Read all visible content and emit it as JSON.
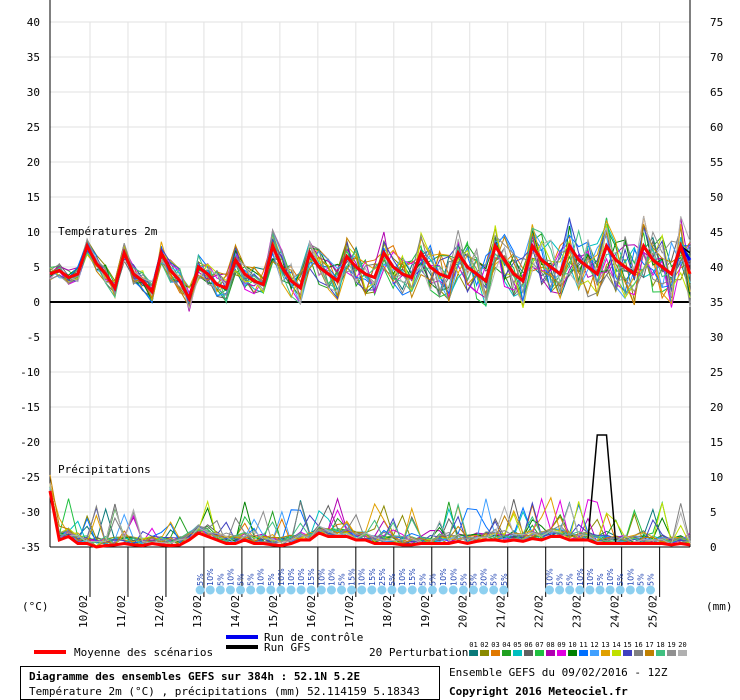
{
  "colors": {
    "mean": "#ff0000",
    "control": "#0000ee",
    "gfs": "#000000",
    "snow": "#8ed0f0"
  },
  "chart_data": {
    "type": "line",
    "left_axis": {
      "label": "(°C)",
      "range": [
        -35,
        40
      ],
      "ticks": [
        "40",
        "35",
        "30",
        "25",
        "20",
        "15",
        "10",
        "5",
        "0",
        "-5",
        "-10",
        "-15",
        "-20",
        "-25",
        "-30",
        "-35"
      ]
    },
    "right_axis": {
      "label": "(mm)",
      "range": [
        0,
        75
      ],
      "ticks": [
        "75",
        "70",
        "65",
        "60",
        "55",
        "50",
        "45",
        "40",
        "35",
        "30",
        "25",
        "20",
        "15",
        "10",
        "5",
        "0"
      ]
    },
    "x_labels": [
      "10/02",
      "11/02",
      "12/02",
      "13/02",
      "14/02",
      "15/02",
      "16/02",
      "17/02",
      "18/02",
      "19/02",
      "20/02",
      "21/02",
      "22/02",
      "23/02",
      "24/02",
      "25/02"
    ],
    "panels": [
      "Températures 2m",
      "Précipitations"
    ],
    "legend": {
      "mean": "Moyenne des scénarios",
      "control": "Run de contrôle",
      "gfs": "Run GFS",
      "perturbations": "20 Perturbations",
      "perturbation_ids": [
        "01",
        "02",
        "03",
        "04",
        "05",
        "06",
        "07",
        "08",
        "09",
        "10",
        "11",
        "12",
        "13",
        "14",
        "15",
        "16",
        "17",
        "18",
        "19",
        "20"
      ]
    },
    "perturbation_colors": [
      "#0a7a7a",
      "#8a8a00",
      "#e07800",
      "#20a020",
      "#00c0c0",
      "#606060",
      "#20c040",
      "#b000b0",
      "#e000e0",
      "#008000",
      "#0070ff",
      "#40a0ff",
      "#e0a000",
      "#c0e000",
      "#4040c0",
      "#808080",
      "#c08000",
      "#40c080",
      "#909090",
      "#b0b0b0"
    ],
    "snow_labels": [
      "5%",
      "10%",
      "5%",
      "10%",
      "5%",
      "5%",
      "10%",
      "5%",
      "10%",
      "10%",
      "10%",
      "15%",
      "10%",
      "10%",
      "5%",
      "15%",
      "10%",
      "15%",
      "25%",
      "5%",
      "10%",
      "15%",
      "5%",
      "5%",
      "10%",
      "10%",
      "5%",
      "5%",
      "20%",
      "5%",
      "5%",
      "10%",
      "5%",
      "5%",
      "10%",
      "10%",
      "5%",
      "10%",
      "5%",
      "10%",
      "5%",
      "5%"
    ],
    "series": [
      {
        "name": "Moyenne des scénarios",
        "temp": [
          4,
          4.5,
          3.5,
          4,
          8,
          5.5,
          4,
          2,
          7,
          4,
          3,
          1.5,
          7,
          4.5,
          3,
          0.5,
          5,
          4,
          2.5,
          2,
          6,
          4,
          3,
          2.5,
          8,
          5,
          3,
          2,
          7,
          5,
          4,
          3,
          6.5,
          5,
          4,
          3.5,
          7,
          5,
          4,
          3.5,
          7,
          5,
          4,
          3.5,
          7,
          5,
          4,
          3,
          8,
          6,
          4,
          3,
          8,
          6,
          5,
          4,
          8,
          6,
          5,
          4,
          8,
          6,
          5,
          4,
          8,
          6,
          5,
          4,
          8,
          4
        ]
      },
      {
        "name": "Run de contrôle",
        "temp": [
          4,
          4.5,
          3.5,
          4,
          8,
          5.5,
          4,
          2,
          7,
          4,
          3,
          1.5,
          7,
          4.5,
          3,
          0.5,
          5,
          4,
          2.5,
          2,
          6,
          4,
          3,
          2.5,
          8,
          5,
          3,
          2,
          7,
          5,
          4,
          3,
          6.5,
          5,
          4,
          3.5,
          7,
          5,
          4,
          3.5,
          7,
          5,
          4,
          3.5,
          7,
          5,
          4,
          3,
          8,
          6,
          4,
          3,
          8,
          6,
          5,
          4,
          8,
          6,
          5,
          4,
          8,
          6,
          5,
          4,
          8,
          6,
          5,
          4,
          8,
          6
        ]
      },
      {
        "name": "Run GFS",
        "temp": [
          4,
          4.5,
          3.5,
          4,
          8,
          5.5,
          4,
          2,
          7,
          4,
          3,
          1.5,
          7,
          4.5,
          3,
          0.5,
          5,
          4,
          2.5,
          2,
          6,
          4,
          3,
          2.5,
          8,
          5,
          3,
          2,
          7,
          5,
          4,
          3,
          6.5,
          5,
          4,
          3.5,
          7,
          5,
          4,
          3.5,
          7,
          5,
          4,
          3.5,
          7,
          5,
          4,
          3,
          8,
          6,
          4,
          3,
          8,
          6,
          5,
          4,
          8,
          6,
          5,
          4,
          8,
          6,
          5,
          4,
          8,
          6,
          5,
          4,
          8,
          7
        ]
      }
    ],
    "precip_mean": [
      8,
      1,
      1.5,
      0.5,
      0.5,
      0,
      0.2,
      0.3,
      0.5,
      0.3,
      0.2,
      0.5,
      0.3,
      0.2,
      0.3,
      1,
      2,
      1.5,
      1,
      0.5,
      0.5,
      1,
      0.5,
      0.5,
      0.3,
      0.2,
      0.5,
      1,
      1,
      2,
      1.5,
      1.5,
      1.5,
      1,
      1,
      0.5,
      0.5,
      0.5,
      0.3,
      0.3,
      0.5,
      0.5,
      0.5,
      0.5,
      0.8,
      0.5,
      0.8,
      1,
      1,
      0.8,
      1,
      0.8,
      1.2,
      1,
      1.5,
      1.5,
      1,
      1,
      1,
      0.5,
      0.5,
      0.5,
      0.5,
      0.5,
      0.5,
      0.5,
      0.5,
      0.3,
      0.5,
      0.3
    ],
    "gfs_precip_peak": {
      "date": "23/02",
      "value": 16
    }
  },
  "footer": {
    "title": "Diagramme des ensembles GEFS sur 384h : 52.1N 5.2E",
    "subtitle": "Température 2m (°C) , précipitations (mm) 52.114159 5.18343",
    "ensemble": "Ensemble GEFS du 09/02/2016 - 12Z",
    "copyright": "Copyright 2016 Meteociel.fr"
  }
}
